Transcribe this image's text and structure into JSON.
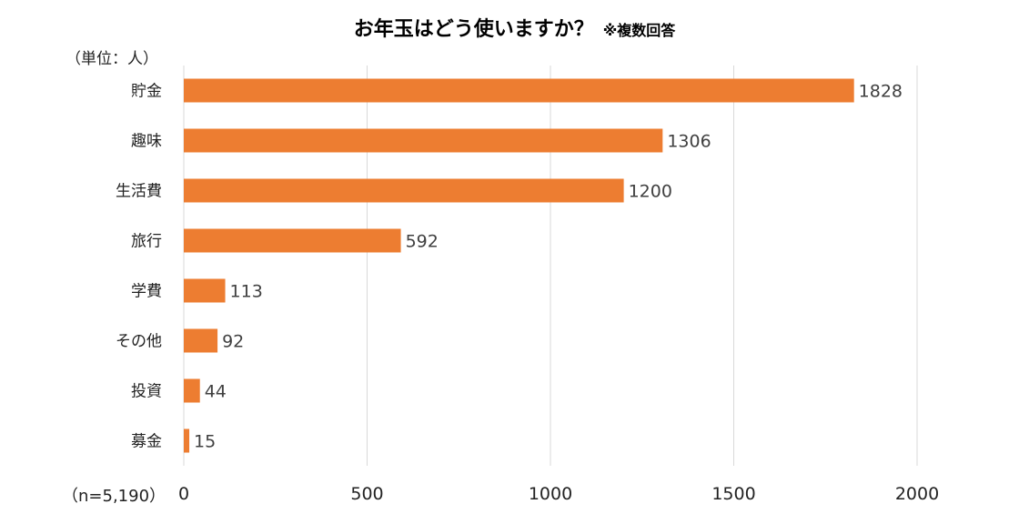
{
  "chart_data": {
    "type": "bar",
    "orientation": "horizontal",
    "title": "お年玉はどう使いますか？",
    "title_note": "※複数回答",
    "unit_label": "（単位：人）",
    "sample_label": "（n=5,190）",
    "categories": [
      "貯金",
      "趣味",
      "生活費",
      "旅行",
      "学費",
      "その他",
      "投資",
      "募金"
    ],
    "values": [
      1828,
      1306,
      1200,
      592,
      113,
      92,
      44,
      15
    ],
    "xlim": [
      0,
      2000
    ],
    "xticks": [
      0,
      500,
      1000,
      1500,
      2000
    ],
    "bar_color": "#ed7d31",
    "grid": true,
    "legend": "none"
  }
}
